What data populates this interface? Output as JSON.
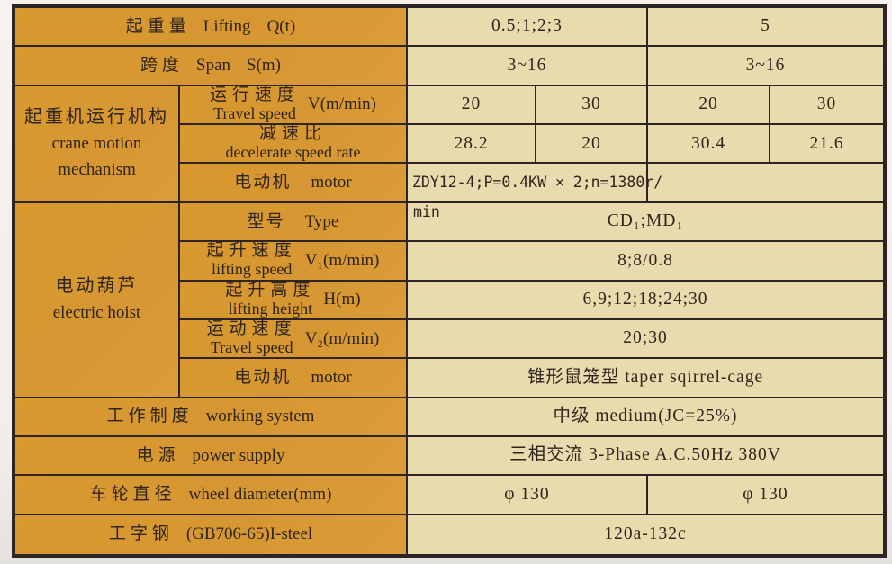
{
  "colors": {
    "orange": "#d6962f",
    "cream": "#e9dbae",
    "border": "#2d2427",
    "text": "#2f241c",
    "page_bg": "#f3f0e9"
  },
  "rows": {
    "lifting": {
      "zh": "起重量",
      "en": "Lifting",
      "unit": "Q(t)",
      "val_a": "0.5;1;2;3",
      "val_b": "5"
    },
    "span": {
      "zh": "跨度",
      "en": "Span",
      "unit": "S(m)",
      "val_a": "3~16",
      "val_b": "3~16"
    },
    "crane_motion": {
      "group_zh": "起重机运行机构",
      "group_en_line1": "crane motion",
      "group_en_line2": "mechanism",
      "travel_speed": {
        "zh": "运行速度",
        "en": "Travel speed",
        "unit": "V(m/min)",
        "v1": "20",
        "v2": "30",
        "v3": "20",
        "v4": "30"
      },
      "decelerate": {
        "zh": "减速比",
        "en": "decelerate speed rate",
        "v1": "28.2",
        "v2": "20",
        "v3": "30.4",
        "v4": "21.6"
      },
      "motor": {
        "zh": "电动机",
        "en": "motor",
        "value": "ZDY12-4;P=0.4KW × 2;n=1380r/",
        "value_overflow": "min"
      }
    },
    "hoist": {
      "group_zh": "电动葫芦",
      "group_en": "electric hoist",
      "type": {
        "zh": "型号",
        "en": "Type",
        "value": "CD₁;MD₁"
      },
      "lifting_speed": {
        "zh": "起升速度",
        "en": "lifting speed",
        "unit": "V₁(m/min)",
        "value": "8;8/0.8"
      },
      "lifting_height": {
        "zh": "起升高度",
        "en": "lifting height",
        "unit": "H(m)",
        "value": "6,9;12;18;24;30"
      },
      "travel_speed": {
        "zh": "运动速度",
        "en": "Travel speed",
        "unit": "V₂(m/min)",
        "value": "20;30"
      },
      "motor": {
        "zh": "电动机",
        "en": "motor",
        "value": "锥形鼠笼型  taper  sqirrel-cage"
      }
    },
    "working_system": {
      "zh": "工作制度",
      "en": "working system",
      "value": "中级  medium(JC=25%)"
    },
    "power_supply": {
      "zh": "电源",
      "en": "power supply",
      "value": "三相交流  3-Phase  A.C.50Hz  380V"
    },
    "wheel_diameter": {
      "zh": "车轮直径",
      "en": "wheel diameter(mm)",
      "val_a": "φ 130",
      "val_b": "φ 130"
    },
    "i_steel": {
      "zh": "工字钢",
      "en": "(GB706-65)I-steel",
      "value": "120a-132c"
    }
  }
}
